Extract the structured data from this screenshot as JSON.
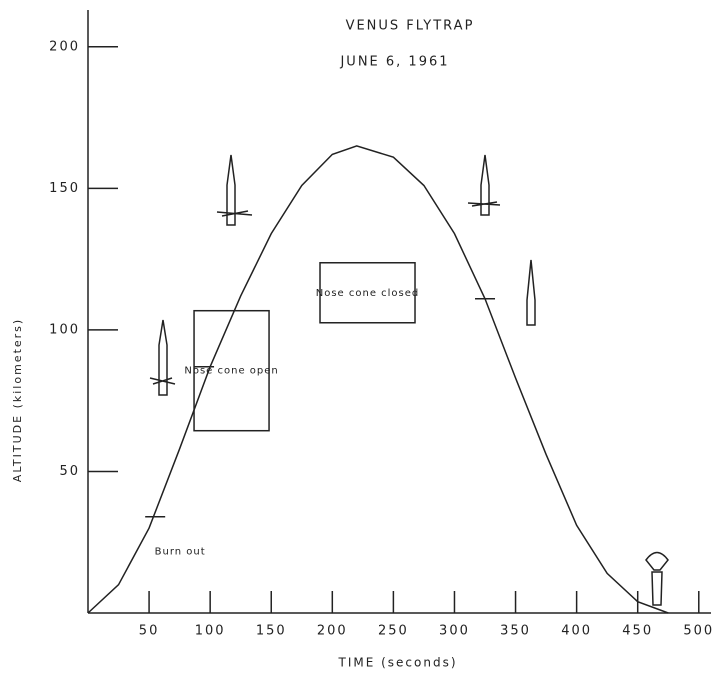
{
  "chart_data": {
    "type": "line",
    "title": "VENUS FLYTRAP",
    "subtitle": "JUNE 6, 1961",
    "x_label": "TIME (seconds)",
    "y_label": "ALTITUDE (kilometers)",
    "x": [
      0,
      25,
      50,
      75,
      100,
      125,
      150,
      175,
      200,
      220,
      250,
      275,
      300,
      325,
      350,
      375,
      400,
      425,
      450,
      475
    ],
    "values": [
      0,
      10,
      30,
      58,
      87,
      112,
      134,
      151,
      162,
      165,
      161,
      151,
      134,
      111,
      83,
      56,
      31,
      14,
      4,
      0
    ],
    "color": "#222222",
    "xlim": [
      0,
      510
    ],
    "ylim": [
      0,
      213
    ],
    "xticks": [
      50,
      100,
      150,
      200,
      250,
      300,
      350,
      400,
      450,
      500
    ],
    "yticks": [
      50,
      100,
      150,
      200
    ],
    "annotations": [
      {
        "text": "Burn out",
        "x": 55,
        "y": 34
      },
      {
        "text": "Nose cone open",
        "x": 95,
        "y": 87
      },
      {
        "text": "Nose cone closed",
        "x": 325,
        "y": 111
      }
    ]
  }
}
